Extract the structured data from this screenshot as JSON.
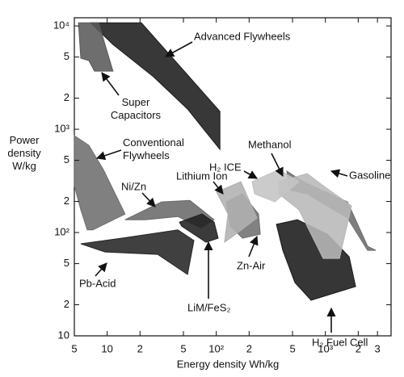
{
  "chart_data": {
    "type": "polygon",
    "xlabel": "Energy density Wh/kg",
    "ylabel": "Power density W/kg",
    "xscale": "log",
    "yscale": "log",
    "xlim": [
      5,
      4000
    ],
    "ylim": [
      10,
      12000
    ],
    "xticks": [
      5,
      10,
      {
        "value": 20,
        "label": "2"
      },
      {
        "value": 50,
        "label": "5"
      },
      {
        "value": 100,
        "label": "10²"
      },
      {
        "value": 200,
        "label": "2"
      },
      {
        "value": 500,
        "label": "5"
      },
      {
        "value": 1000,
        "label": "10³"
      },
      {
        "value": 2000,
        "label": "2"
      },
      {
        "value": 3000,
        "label": "3"
      }
    ],
    "yticks": [
      10,
      {
        "value": 20,
        "label": "2"
      },
      {
        "value": 50,
        "label": "5"
      },
      {
        "value": 100,
        "label": "10²"
      },
      {
        "value": 200,
        "label": "2"
      },
      {
        "value": 500,
        "label": "5"
      },
      {
        "value": 1000,
        "label": "10³"
      },
      {
        "value": 2000,
        "label": "2"
      },
      {
        "value": 5000,
        "label": "5"
      },
      {
        "value": 10000,
        "label": "10⁴"
      }
    ],
    "series": [
      {
        "name": "Advanced Flywheels",
        "color": "#1c1c1c",
        "x": [
          7.04,
          20.6,
          108,
          108,
          54.5,
          26.6,
          11.3
        ],
        "y": [
          10740,
          10740,
          1486,
          638,
          1567,
          3220,
          6610
        ]
      },
      {
        "name": "Super Capacitors",
        "color": "#5a5a5a",
        "x": [
          5.45,
          8.34,
          11.3,
          7.65,
          6.8,
          5.73
        ],
        "y": [
          10740,
          10740,
          3650,
          3650,
          4610,
          4870
        ]
      },
      {
        "name": "Conventional Flywheels",
        "color": "#6e6e6e",
        "x": [
          5,
          6.8,
          9.24,
          14.6,
          7.4,
          6.57,
          5.73,
          5
        ],
        "y": [
          866,
          698,
          406,
          151,
          106,
          106,
          166,
          284
        ]
      },
      {
        "name": "Pb-Acid",
        "color": "#262626",
        "x": [
          5.73,
          13.5,
          44.4,
          62.4,
          54.5,
          29,
          9.55
        ],
        "y": [
          77.8,
          88.1,
          106,
          83.6,
          39.3,
          61.5,
          64.9
        ]
      },
      {
        "name": "Ni/Zn",
        "color": "#6a6a6a",
        "x": [
          14.6,
          31.5,
          57.3,
          95.5,
          71.6,
          44.4,
          22.4
        ],
        "y": [
          133,
          198,
          205,
          133,
          111,
          143,
          133
        ]
      },
      {
        "name": "LiM/FeS₂",
        "color": "#202020",
        "x": [
          45.9,
          74,
          95.5,
          104,
          80.6,
          48.3
        ],
        "y": [
          126,
          151,
          126,
          88.1,
          80.5,
          115
        ]
      },
      {
        "name": "Zn-Air",
        "color": "#707070",
        "x": [
          123.5,
          174,
          244,
          253,
          174,
          134.5
        ],
        "y": [
          198,
          237,
          151,
          96.4,
          88.1,
          115
        ]
      },
      {
        "name": "Lithium Ion",
        "color": "#b0b0b0",
        "x": [
          100.6,
          168,
          236,
          151,
          119,
          128
        ],
        "y": [
          246,
          311,
          138,
          96.4,
          80.5,
          151
        ]
      },
      {
        "name": "H₂ Fuel Cell",
        "color": "#1a1a1a",
        "x": [
          356,
          554,
          1042,
          1650,
          1892,
          740,
          526,
          407
        ],
        "y": [
          120,
          133,
          96.4,
          58.3,
          30,
          22.1,
          32.8,
          67.3
        ]
      },
      {
        "name": "Gasoline",
        "color": "#6c6c6c",
        "x": [
          444,
          624,
          1595,
          2440,
          2900,
          2440,
          1595,
          680,
          467
        ],
        "y": [
          393,
          311,
          198,
          73.6,
          67.3,
          67.3,
          138,
          237,
          259
        ]
      },
      {
        "name": "Methanol",
        "color": "#b8b8b8",
        "x": [
          374,
          680,
          955,
          1738,
          1345,
          955,
          573,
          374
        ],
        "y": [
          311,
          372,
          284,
          181,
          56.2,
          56.2,
          166,
          237
        ]
      },
      {
        "name": "H₂ ICE",
        "color": "#c4c4c4",
        "x": [
          213,
          374,
          573,
          344,
          224
        ],
        "y": [
          311,
          406,
          311,
          198,
          237
        ]
      }
    ]
  }
}
